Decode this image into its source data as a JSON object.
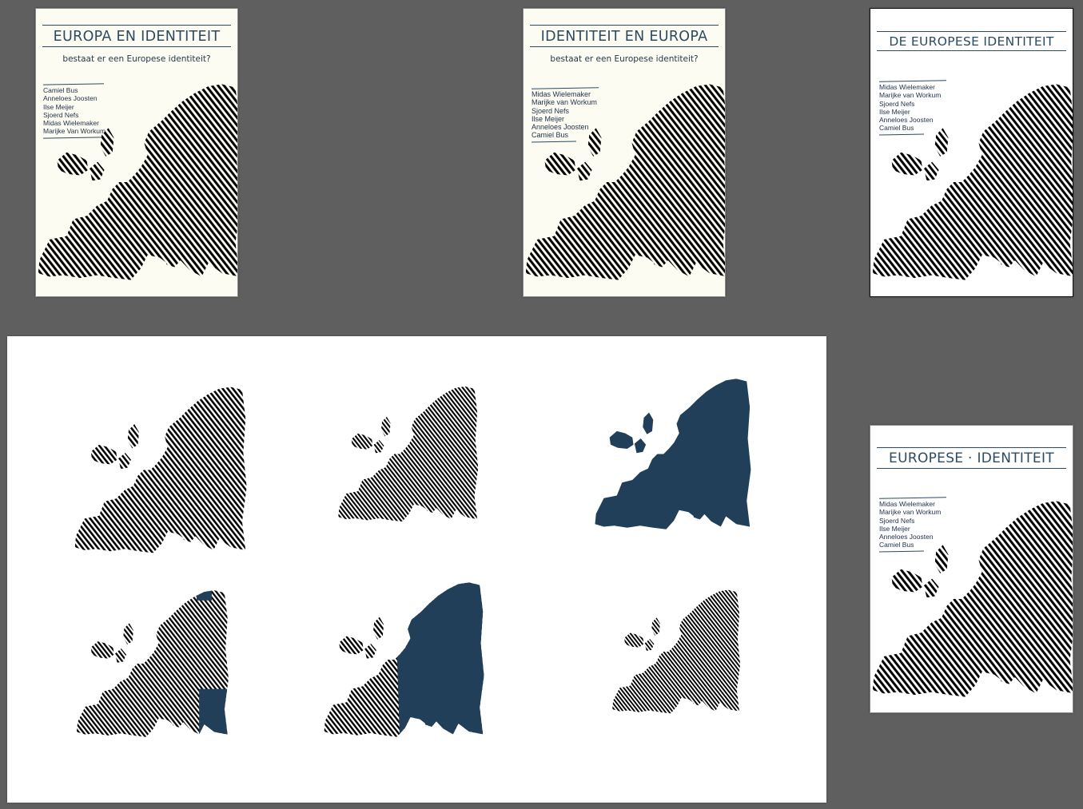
{
  "colors": {
    "canvas": "#5f5f5f",
    "navy": "#213f58",
    "indigo": "#2a2a94",
    "gray": "#9c9c9c",
    "cream": "#fdfcf2",
    "white": "#ffffff"
  },
  "covers": [
    {
      "title": "EUROPA EN IDENTITEIT",
      "subtitle": "bestaat er een Europese identiteit?",
      "authors": [
        "Camiel Bus",
        "Anneloes Joosten",
        "Ilse Meijer",
        "Sjoerd Nefs",
        "Midas Wielemaker",
        "Marijke Van Workum"
      ],
      "map_color": "#2a2a94",
      "background": "#fdfcf2"
    },
    {
      "title": "IDENTITEIT EN EUROPA",
      "subtitle": "bestaat er een Europese identiteit?",
      "authors": [
        "Midas Wielemaker",
        "Marijke van Workum",
        "Sjoerd Nefs",
        "Ilse Meijer",
        "Anneloes Joosten",
        "Camiel Bus"
      ],
      "map_color": "#213f58",
      "background": "#fdfcf2"
    },
    {
      "title": "DE EUROPESE IDENTITEIT",
      "authors": [
        "Midas Wielemaker",
        "Marijke van Workum",
        "Sjoerd Nefs",
        "Ilse Meijer",
        "Anneloes Joosten",
        "Camiel Bus"
      ],
      "map_color": "#213f58",
      "background": "#ffffff"
    },
    {
      "title": "EUROPESE · IDENTITEIT",
      "authors": [
        "Midas Wielemaker",
        "Marijke van Workum",
        "Sjoerd Nefs",
        "Ilse Meijer",
        "Anneloes Joosten",
        "Camiel Bus"
      ],
      "map_color": "#9c9c9c",
      "background": "#ffffff"
    }
  ],
  "map_variants": [
    {
      "style": "fingerprint-zoomed",
      "color": "#213f58"
    },
    {
      "style": "fingerprint-full",
      "color": "#22304f"
    },
    {
      "style": "solid",
      "color": "#213f58"
    },
    {
      "style": "fingerprint-east-solid-patch",
      "color": "#213f58"
    },
    {
      "style": "half-fingerprint-half-solid",
      "color": "#213f58"
    },
    {
      "style": "fingerprint-full",
      "color": "#22304f"
    }
  ]
}
